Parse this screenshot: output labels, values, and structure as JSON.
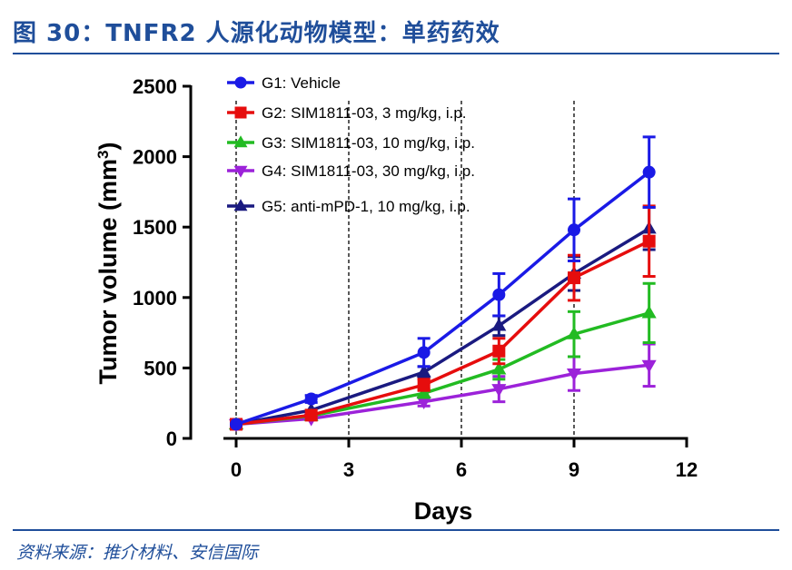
{
  "header": {
    "title": "图 30：TNFR2 人源化动物模型：单药药效"
  },
  "footer": {
    "source": "资料来源：推介材料、安信国际"
  },
  "chart_data": {
    "type": "line",
    "xlabel": "Days",
    "ylabel": "Tumor volume (mm",
    "ylabel_sup": "3",
    "ylabel_close": ")",
    "xlim": [
      0,
      12
    ],
    "ylim": [
      0,
      2500
    ],
    "xticks": [
      "0",
      "3",
      "6",
      "9",
      "12"
    ],
    "yticks": [
      "0",
      "500",
      "1000",
      "1500",
      "2000",
      "2500"
    ],
    "xtick_values": [
      0,
      3,
      6,
      9,
      12
    ],
    "ytick_values": [
      0,
      500,
      1000,
      1500,
      2000,
      2500
    ],
    "dosing_days": [
      0,
      3,
      6,
      9
    ],
    "legend_position": "top-left",
    "series": [
      {
        "name": "G1: Vehicle",
        "color": "#1a1ae6",
        "marker": "circle",
        "x": [
          0,
          2,
          5,
          7,
          9,
          11
        ],
        "y": [
          100,
          280,
          610,
          1020,
          1480,
          1890
        ],
        "err": [
          20,
          25,
          100,
          150,
          220,
          250
        ]
      },
      {
        "name": "G2: SIM1811-03, 3 mg/kg, i.p.",
        "color": "#e60d0d",
        "marker": "square",
        "x": [
          0,
          2,
          5,
          7,
          9,
          11
        ],
        "y": [
          100,
          165,
          380,
          620,
          1140,
          1400
        ],
        "err": [
          15,
          20,
          40,
          90,
          160,
          250
        ]
      },
      {
        "name": "G3: SIM1811-03, 10 mg/kg, i.p.",
        "color": "#22bb22",
        "marker": "triangle-up",
        "x": [
          0,
          2,
          5,
          7,
          9,
          11
        ],
        "y": [
          100,
          160,
          320,
          490,
          740,
          890
        ],
        "err": [
          15,
          20,
          30,
          70,
          160,
          210
        ]
      },
      {
        "name": "G4: SIM1811-03, 30 mg/kg, i.p.",
        "color": "#9c22d9",
        "marker": "triangle-down",
        "x": [
          0,
          2,
          5,
          7,
          9,
          11
        ],
        "y": [
          100,
          140,
          260,
          350,
          460,
          520
        ],
        "err": [
          15,
          15,
          30,
          90,
          120,
          150
        ]
      },
      {
        "name": "G5: anti-mPD-1, 10 mg/kg, i.p.",
        "color": "#1a1a80",
        "marker": "triangle-up",
        "x": [
          0,
          2,
          5,
          7,
          9,
          11
        ],
        "y": [
          100,
          200,
          470,
          800,
          1170,
          1490
        ],
        "err": [
          15,
          15,
          40,
          70,
          120,
          150
        ]
      }
    ]
  }
}
